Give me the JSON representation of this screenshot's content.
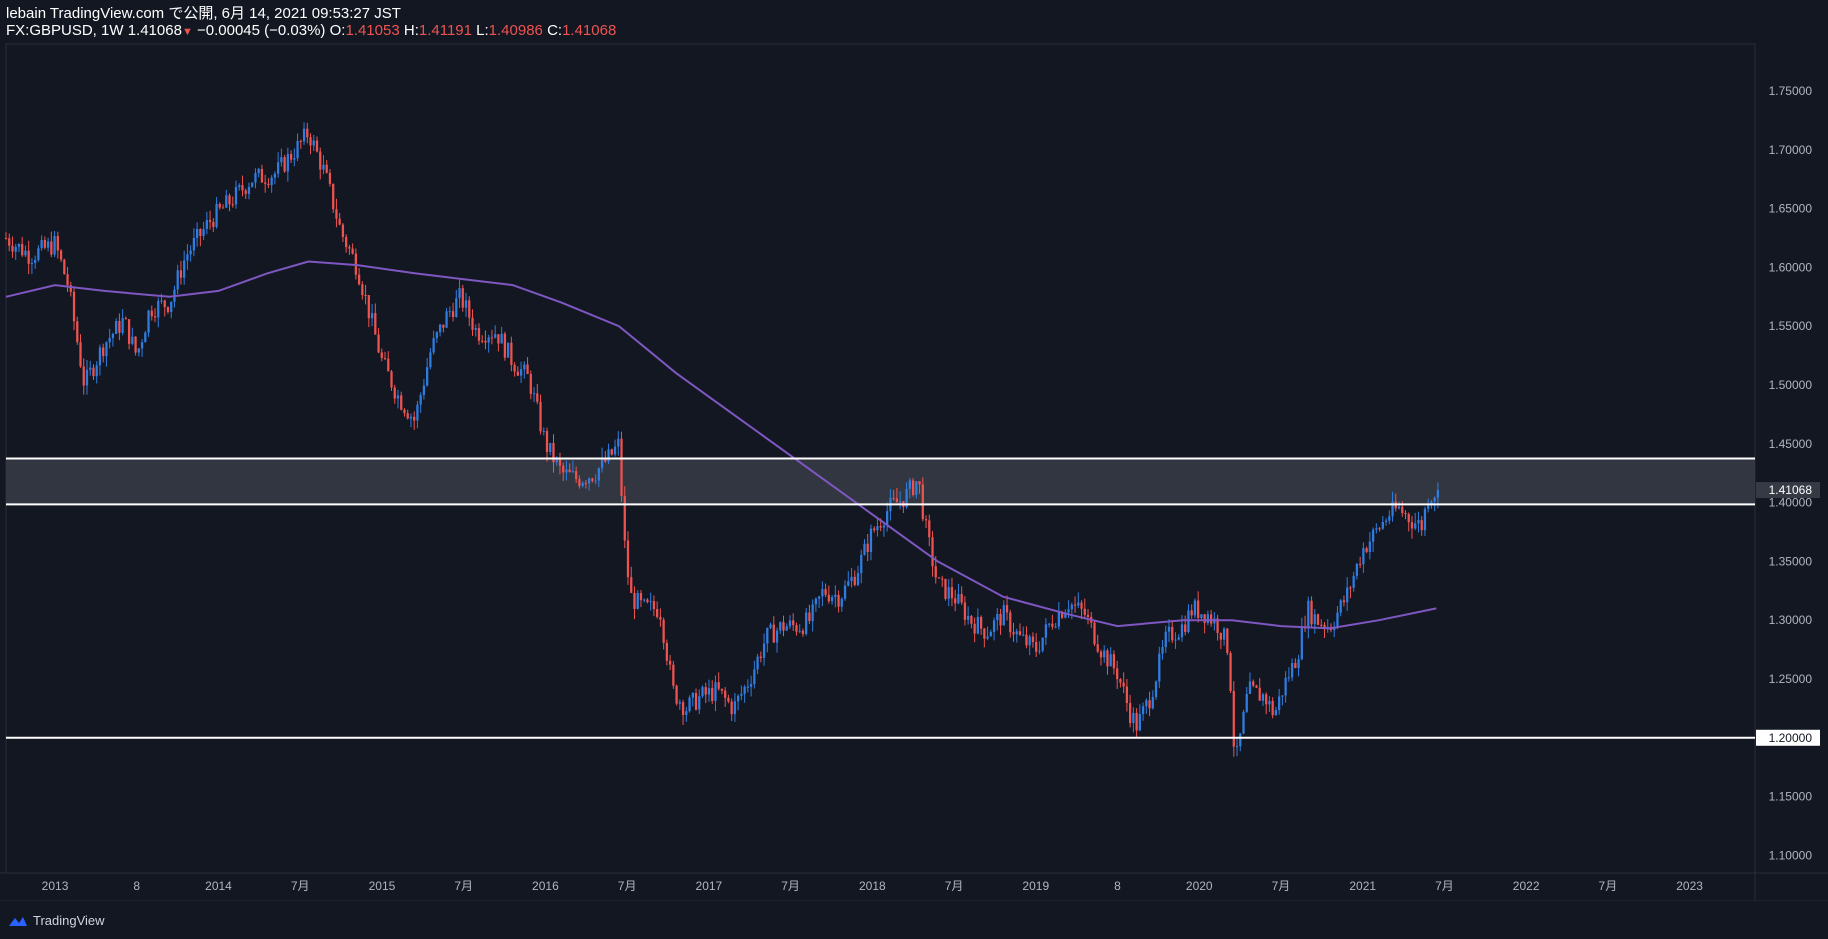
{
  "header": {
    "line1": "lebain TradingView.com で公開, 6月 14, 2021 09:53:27 JST",
    "symbol": "FX:GBPUSD, 1W",
    "last": "1.41068",
    "change": "−0.00045 (−0.03%)",
    "o_label": "O:",
    "o_value": "1.41053",
    "h_label": "H:",
    "h_value": "1.41191",
    "l_label": "L:",
    "l_value": "1.40986",
    "c_label": "C:",
    "c_value": "1.41068"
  },
  "footer": {
    "brand": "TradingView"
  },
  "colors": {
    "background": "#131722",
    "up": "#2f7de1",
    "down": "#ef5350",
    "ma": "#7e57c2",
    "zone": "#363a45",
    "level_line": "#ffffff",
    "axis_text": "#b2b5be",
    "border": "#2a2e39"
  },
  "chart_data": {
    "type": "candlestick",
    "symbol": "FX:GBPUSD",
    "timeframe": "1W",
    "y_ticks": [
      "1.75000",
      "1.70000",
      "1.65000",
      "1.60000",
      "1.55000",
      "1.50000",
      "1.45000",
      "1.40000",
      "1.35000",
      "1.30000",
      "1.25000",
      "1.20000",
      "1.15000",
      "1.10000"
    ],
    "ylim": [
      1.085,
      1.79
    ],
    "x_ticks": [
      {
        "label": "2013",
        "t": 2013.0
      },
      {
        "label": "8",
        "t": 2013.5
      },
      {
        "label": "2014",
        "t": 2014.0
      },
      {
        "label": "7月",
        "t": 2014.5
      },
      {
        "label": "2015",
        "t": 2015.0
      },
      {
        "label": "7月",
        "t": 2015.5
      },
      {
        "label": "2016",
        "t": 2016.0
      },
      {
        "label": "7月",
        "t": 2016.5
      },
      {
        "label": "2017",
        "t": 2017.0
      },
      {
        "label": "7月",
        "t": 2017.5
      },
      {
        "label": "2018",
        "t": 2018.0
      },
      {
        "label": "7月",
        "t": 2018.5
      },
      {
        "label": "2019",
        "t": 2019.0
      },
      {
        "label": "8",
        "t": 2019.5
      },
      {
        "label": "2020",
        "t": 2020.0
      },
      {
        "label": "7月",
        "t": 2020.5
      },
      {
        "label": "2021",
        "t": 2021.0
      },
      {
        "label": "7月",
        "t": 2021.5
      },
      {
        "label": "2022",
        "t": 2022.0
      },
      {
        "label": "7月",
        "t": 2022.5
      },
      {
        "label": "2023",
        "t": 2023.0
      }
    ],
    "xlim": [
      2012.7,
      2023.4
    ],
    "price_path": [
      [
        2012.7,
        1.625
      ],
      [
        2012.85,
        1.61
      ],
      [
        2013.0,
        1.62
      ],
      [
        2013.08,
        1.585
      ],
      [
        2013.18,
        1.5
      ],
      [
        2013.3,
        1.535
      ],
      [
        2013.42,
        1.555
      ],
      [
        2013.5,
        1.525
      ],
      [
        2013.58,
        1.565
      ],
      [
        2013.7,
        1.57
      ],
      [
        2013.8,
        1.61
      ],
      [
        2013.95,
        1.64
      ],
      [
        2014.1,
        1.66
      ],
      [
        2014.2,
        1.675
      ],
      [
        2014.35,
        1.68
      ],
      [
        2014.5,
        1.705
      ],
      [
        2014.55,
        1.715
      ],
      [
        2014.65,
        1.68
      ],
      [
        2014.75,
        1.63
      ],
      [
        2014.85,
        1.6
      ],
      [
        2015.0,
        1.52
      ],
      [
        2015.1,
        1.49
      ],
      [
        2015.2,
        1.47
      ],
      [
        2015.3,
        1.53
      ],
      [
        2015.4,
        1.56
      ],
      [
        2015.48,
        1.575
      ],
      [
        2015.58,
        1.545
      ],
      [
        2015.7,
        1.545
      ],
      [
        2015.8,
        1.52
      ],
      [
        2015.9,
        1.505
      ],
      [
        2016.0,
        1.45
      ],
      [
        2016.1,
        1.425
      ],
      [
        2016.2,
        1.42
      ],
      [
        2016.3,
        1.425
      ],
      [
        2016.4,
        1.44
      ],
      [
        2016.45,
        1.45
      ],
      [
        2016.48,
        1.37
      ],
      [
        2016.52,
        1.32
      ],
      [
        2016.6,
        1.31
      ],
      [
        2016.7,
        1.31
      ],
      [
        2016.78,
        1.24
      ],
      [
        2016.86,
        1.225
      ],
      [
        2016.95,
        1.235
      ],
      [
        2017.05,
        1.24
      ],
      [
        2017.15,
        1.225
      ],
      [
        2017.25,
        1.25
      ],
      [
        2017.35,
        1.285
      ],
      [
        2017.45,
        1.295
      ],
      [
        2017.55,
        1.295
      ],
      [
        2017.62,
        1.3
      ],
      [
        2017.7,
        1.325
      ],
      [
        2017.8,
        1.32
      ],
      [
        2017.9,
        1.34
      ],
      [
        2018.0,
        1.375
      ],
      [
        2018.1,
        1.395
      ],
      [
        2018.2,
        1.405
      ],
      [
        2018.28,
        1.42
      ],
      [
        2018.33,
        1.375
      ],
      [
        2018.4,
        1.33
      ],
      [
        2018.5,
        1.32
      ],
      [
        2018.6,
        1.3
      ],
      [
        2018.7,
        1.29
      ],
      [
        2018.8,
        1.305
      ],
      [
        2018.9,
        1.285
      ],
      [
        2019.0,
        1.275
      ],
      [
        2019.1,
        1.3
      ],
      [
        2019.2,
        1.315
      ],
      [
        2019.3,
        1.305
      ],
      [
        2019.4,
        1.275
      ],
      [
        2019.5,
        1.255
      ],
      [
        2019.58,
        1.22
      ],
      [
        2019.62,
        1.21
      ],
      [
        2019.7,
        1.235
      ],
      [
        2019.8,
        1.285
      ],
      [
        2019.9,
        1.295
      ],
      [
        2019.96,
        1.31
      ],
      [
        2020.05,
        1.305
      ],
      [
        2020.12,
        1.295
      ],
      [
        2020.18,
        1.275
      ],
      [
        2020.22,
        1.175
      ],
      [
        2020.3,
        1.24
      ],
      [
        2020.4,
        1.235
      ],
      [
        2020.46,
        1.22
      ],
      [
        2020.52,
        1.245
      ],
      [
        2020.6,
        1.27
      ],
      [
        2020.66,
        1.31
      ],
      [
        2020.72,
        1.3
      ],
      [
        2020.8,
        1.295
      ],
      [
        2020.9,
        1.32
      ],
      [
        2021.0,
        1.36
      ],
      [
        2021.08,
        1.375
      ],
      [
        2021.16,
        1.39
      ],
      [
        2021.22,
        1.395
      ],
      [
        2021.3,
        1.385
      ],
      [
        2021.36,
        1.38
      ],
      [
        2021.4,
        1.405
      ],
      [
        2021.45,
        1.41
      ],
      [
        2021.46,
        1.41068
      ]
    ],
    "candle_weeks": 443,
    "ma_path": [
      [
        2012.7,
        1.575
      ],
      [
        2013.0,
        1.585
      ],
      [
        2013.3,
        1.58
      ],
      [
        2013.7,
        1.575
      ],
      [
        2014.0,
        1.58
      ],
      [
        2014.3,
        1.595
      ],
      [
        2014.55,
        1.605
      ],
      [
        2014.85,
        1.602
      ],
      [
        2015.2,
        1.595
      ],
      [
        2015.5,
        1.59
      ],
      [
        2015.8,
        1.585
      ],
      [
        2016.1,
        1.57
      ],
      [
        2016.45,
        1.55
      ],
      [
        2016.8,
        1.51
      ],
      [
        2017.2,
        1.47
      ],
      [
        2017.6,
        1.43
      ],
      [
        2018.0,
        1.39
      ],
      [
        2018.4,
        1.35
      ],
      [
        2018.8,
        1.32
      ],
      [
        2019.2,
        1.305
      ],
      [
        2019.5,
        1.295
      ],
      [
        2019.9,
        1.3
      ],
      [
        2020.2,
        1.3
      ],
      [
        2020.5,
        1.295
      ],
      [
        2020.8,
        1.293
      ],
      [
        2021.1,
        1.3
      ],
      [
        2021.45,
        1.31
      ]
    ],
    "horizontal_lines": [
      1.4375,
      1.3985,
      1.2
    ],
    "zone": {
      "upper": 1.4375,
      "lower": 1.3985
    },
    "price_label": "1.41068",
    "level_label": "1.20000"
  }
}
